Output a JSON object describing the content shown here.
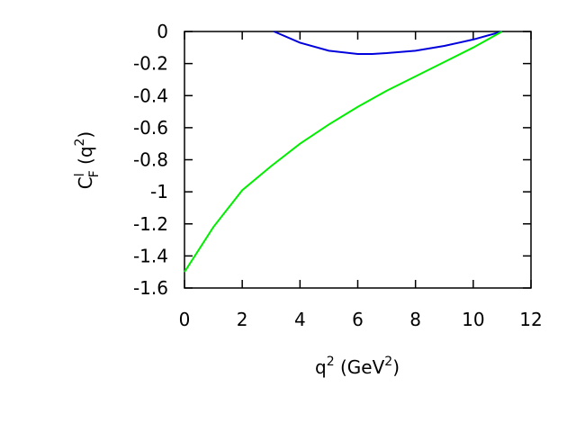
{
  "chart_data": {
    "type": "line",
    "x_label": [
      "q",
      "2",
      " (GeV",
      "2",
      ")"
    ],
    "y_label": [
      "C",
      "l",
      "F",
      " (q",
      "2",
      ")"
    ],
    "xlim": [
      0,
      12
    ],
    "xticks": [
      0,
      2,
      4,
      6,
      8,
      10,
      12
    ],
    "ylim": [
      -1.6,
      0
    ],
    "yticks": [
      0,
      -0.2,
      -0.4,
      -0.6,
      -0.8,
      -1,
      -1.2,
      -1.4,
      -1.6
    ],
    "series": [
      {
        "color": "#0000dd",
        "x": [
          3.1,
          4,
          5,
          6,
          6.5,
          7,
          8,
          9,
          10,
          11
        ],
        "values": [
          0,
          -0.07,
          -0.12,
          -0.14,
          -0.14,
          -0.135,
          -0.12,
          -0.09,
          -0.05,
          0
        ]
      },
      {
        "color": "#00ee00",
        "x": [
          0,
          1,
          2,
          3,
          4,
          5,
          6,
          7,
          8,
          9,
          10,
          11
        ],
        "values": [
          -1.5,
          -1.22,
          -0.99,
          -0.84,
          -0.7,
          -0.58,
          -0.47,
          -0.37,
          -0.28,
          -0.19,
          -0.1,
          0
        ]
      }
    ]
  }
}
